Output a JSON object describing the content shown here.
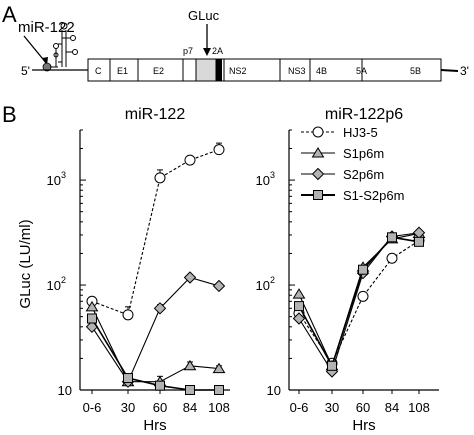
{
  "panel_a": {
    "letter": "A",
    "mir_label": "miR-122",
    "gluc_label": "GLuc",
    "five_prime": "5'",
    "three_prime": "3'",
    "p7_label": "p7",
    "twoA_label": "2A",
    "genes": [
      "C",
      "E1",
      "E2",
      "NS2",
      "NS3",
      "4B",
      "5A",
      "5B"
    ]
  },
  "panel_b": {
    "letter": "B"
  },
  "chart_data": [
    {
      "type": "line",
      "title": "miR-122",
      "xlabel": "Hrs",
      "ylabel": "GLuc (LU/ml)",
      "yscale": "log",
      "ylim": [
        10,
        3000
      ],
      "categories": [
        "0-6",
        "30",
        "60",
        "84",
        "108"
      ],
      "yticks": [
        {
          "base": "10",
          "exp": ""
        },
        {
          "base": "10",
          "exp": "2"
        },
        {
          "base": "10",
          "exp": "3"
        }
      ],
      "series": [
        {
          "name": "HJ3-5",
          "marker": "circle",
          "dash": true,
          "values": [
            70,
            52,
            1050,
            1550,
            1950
          ],
          "errors": [
            5,
            10,
            200,
            120,
            300
          ]
        },
        {
          "name": "S1p6m",
          "marker": "triangle",
          "dash": false,
          "values": [
            62,
            12,
            12,
            17,
            16
          ],
          "errors": [
            0,
            1,
            1.5,
            1.5,
            1
          ]
        },
        {
          "name": "S2p6m",
          "marker": "diamond",
          "dash": false,
          "values": [
            40,
            12,
            60,
            118,
            98
          ],
          "errors": [
            0,
            0,
            5,
            5,
            4
          ]
        },
        {
          "name": "S1-S2p6m",
          "marker": "square",
          "dash": false,
          "values": [
            48,
            13,
            11,
            10,
            10
          ],
          "errors": [
            0,
            0,
            0,
            0,
            0
          ]
        }
      ]
    },
    {
      "type": "line",
      "title": "miR-122p6",
      "xlabel": "Hrs",
      "ylabel": "",
      "yscale": "log",
      "ylim": [
        10,
        3000
      ],
      "categories": [
        "0-6",
        "30",
        "60",
        "84",
        "108"
      ],
      "yticks": [
        {
          "base": "10",
          "exp": ""
        },
        {
          "base": "10",
          "exp": "2"
        },
        {
          "base": "10",
          "exp": "3"
        }
      ],
      "legend": {
        "placement": "top-left",
        "entries": [
          "HJ3-5",
          "S1p6m",
          "S2p6m",
          "S1-S2p6m"
        ]
      },
      "series": [
        {
          "name": "HJ3-5",
          "marker": "circle",
          "dash": true,
          "values": [
            54,
            18,
            78,
            180,
            265
          ],
          "errors": [
            0,
            0,
            6,
            15,
            10
          ]
        },
        {
          "name": "S1p6m",
          "marker": "triangle",
          "dash": false,
          "values": [
            82,
            17,
            148,
            275,
            310
          ],
          "errors": [
            0,
            0,
            5,
            5,
            5
          ]
        },
        {
          "name": "S2p6m",
          "marker": "diamond",
          "dash": false,
          "values": [
            48,
            15,
            130,
            290,
            315
          ],
          "errors": [
            0,
            0,
            0,
            0,
            0
          ]
        },
        {
          "name": "S1-S2p6m",
          "marker": "square",
          "dash": false,
          "values": [
            63,
            17,
            140,
            285,
            258
          ],
          "errors": [
            0,
            0,
            0,
            0,
            0
          ]
        }
      ]
    }
  ]
}
